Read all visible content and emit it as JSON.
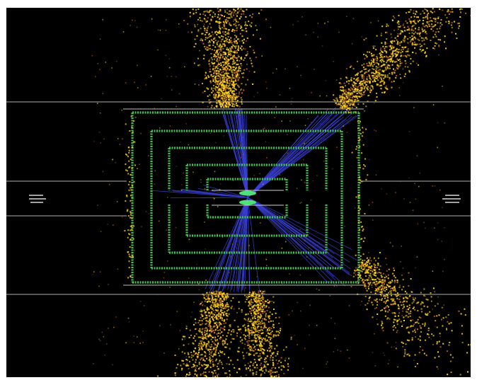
{
  "image": {
    "subject": "particle-detector-event-display",
    "background_color": "#000000",
    "palette": {
      "detector_outline": "#9a9a9a",
      "tracker_layers": "#3fbf4f",
      "tracks": "#3a3fd4",
      "energy_deposits": "#ffd21a",
      "low_energy_deposits": "#c8642a",
      "vertex": "#4fe07a"
    }
  }
}
